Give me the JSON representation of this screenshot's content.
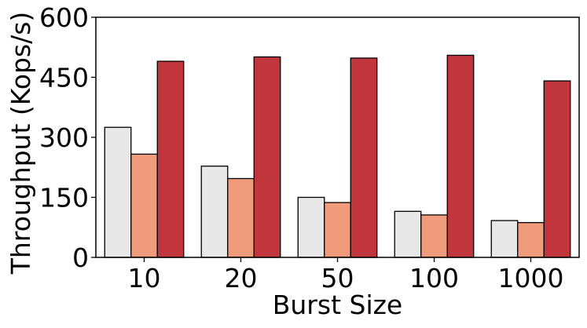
{
  "chart_data": {
    "type": "bar",
    "categories": [
      "10",
      "20",
      "50",
      "100",
      "1000"
    ],
    "series": [
      {
        "values": [
          325,
          228,
          150,
          115,
          92
        ],
        "color": "#e8e8e8"
      },
      {
        "values": [
          258,
          197,
          137,
          106,
          87
        ],
        "color": "#f09c7c"
      },
      {
        "values": [
          490,
          501,
          498,
          505,
          441
        ],
        "color": "#c0363c"
      }
    ],
    "xlabel": "Burst Size",
    "ylabel": "Throughput (Kops/s)",
    "ylim": [
      0,
      600
    ],
    "yticks": [
      0,
      150,
      300,
      450,
      600
    ],
    "grid": false,
    "legend": "none"
  }
}
